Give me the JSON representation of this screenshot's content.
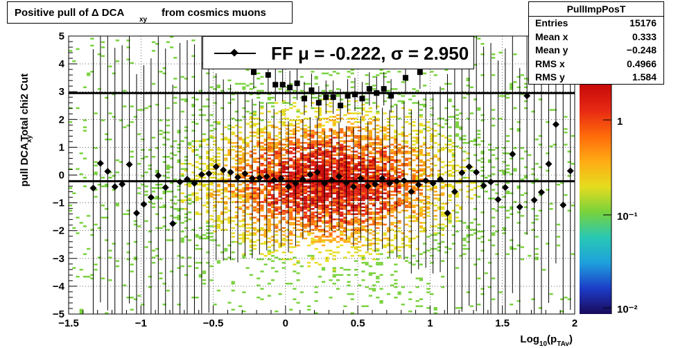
{
  "title": {
    "text1": "Positive pull of Δ DCA",
    "sub": "xy",
    "text2": "from cosmics muons"
  },
  "stats": {
    "name": "PullImpPosT",
    "rows": [
      {
        "label": "Entries",
        "value": "15176"
      },
      {
        "label": "Mean x",
        "value": "0.333"
      },
      {
        "label": "Mean y",
        "value": "−0.248"
      },
      {
        "label": "RMS x",
        "value": "0.4966"
      },
      {
        "label": "RMS y",
        "value": "1.584"
      }
    ]
  },
  "legend": {
    "text": "FF μ = -0.222, σ =   2.950"
  },
  "colors": {
    "marker": "#000000",
    "palette": [
      "#1a0a5a",
      "#1c3cc8",
      "#1ea0dc",
      "#28c8b4",
      "#78d23c",
      "#e6dc1e",
      "#ffaa14",
      "#ff6a0a",
      "#e62814",
      "#c80a0a"
    ]
  },
  "chart_data": {
    "type": "scatter",
    "subtype": "2D histogram with profile markers",
    "xlabel": "Log",
    "xlabel_sub": "10",
    "xlabel_rest": "(p",
    "xlabel_sub2": "TAv",
    "xlabel_end": ")",
    "ylabel_top": "Total chi2 Cut",
    "ylabel": "pull DCA",
    "ylabel_sub": "xy",
    "xlim": [
      -1.5,
      2
    ],
    "ylim": [
      -5,
      5
    ],
    "xticks": [
      "−1.5",
      "−1",
      "−0.5",
      "0",
      "0.5",
      "1",
      "1.5",
      "2"
    ],
    "yticks": [
      "−5",
      "−4",
      "−3",
      "−2",
      "−1",
      "0",
      "1",
      "2",
      "3",
      "4",
      "5"
    ],
    "colorbar_ticks": [
      "1",
      "10⁻¹",
      "10⁻²"
    ],
    "colorbar_scale": "log",
    "grid": true,
    "fit_lines": [
      {
        "name": "mean",
        "y": -0.222
      },
      {
        "name": "upper",
        "y": 2.95
      }
    ],
    "profile_points": [
      {
        "x": -1.33,
        "y": -0.47
      },
      {
        "x": -1.28,
        "y": 0.42
      },
      {
        "x": -1.23,
        "y": 0.13
      },
      {
        "x": -1.18,
        "y": -0.42
      },
      {
        "x": -1.13,
        "y": -0.33
      },
      {
        "x": -1.08,
        "y": 0.38
      },
      {
        "x": -1.03,
        "y": -1.37
      },
      {
        "x": -0.98,
        "y": -1.05
      },
      {
        "x": -0.93,
        "y": -0.8
      },
      {
        "x": -0.88,
        "y": -0.02
      },
      {
        "x": -0.83,
        "y": -0.45
      },
      {
        "x": -0.78,
        "y": -1.75
      },
      {
        "x": -0.73,
        "y": -0.25
      },
      {
        "x": -0.68,
        "y": -0.15
      },
      {
        "x": -0.63,
        "y": -0.3
      },
      {
        "x": -0.58,
        "y": 0.02
      },
      {
        "x": -0.53,
        "y": 0.05
      },
      {
        "x": -0.48,
        "y": 0.3
      },
      {
        "x": -0.43,
        "y": 0.18
      },
      {
        "x": -0.38,
        "y": 0.1
      },
      {
        "x": -0.33,
        "y": -0.08
      },
      {
        "x": -0.28,
        "y": 0.05
      },
      {
        "x": -0.23,
        "y": -0.12
      },
      {
        "x": -0.18,
        "y": -0.1
      },
      {
        "x": -0.13,
        "y": -0.05
      },
      {
        "x": -0.08,
        "y": -0.18
      },
      {
        "x": -0.03,
        "y": -0.12
      },
      {
        "x": 0.02,
        "y": -0.42
      },
      {
        "x": 0.07,
        "y": -0.3
      },
      {
        "x": 0.12,
        "y": -0.15
      },
      {
        "x": 0.17,
        "y": 0.02
      },
      {
        "x": 0.22,
        "y": 0.1
      },
      {
        "x": 0.27,
        "y": -0.3
      },
      {
        "x": 0.32,
        "y": -0.18
      },
      {
        "x": 0.37,
        "y": -0.05
      },
      {
        "x": 0.42,
        "y": -0.28
      },
      {
        "x": 0.47,
        "y": -0.42
      },
      {
        "x": 0.52,
        "y": -0.12
      },
      {
        "x": 0.57,
        "y": -0.4
      },
      {
        "x": 0.62,
        "y": -0.33
      },
      {
        "x": 0.67,
        "y": -0.12
      },
      {
        "x": 0.72,
        "y": -0.3
      },
      {
        "x": 0.77,
        "y": -0.22
      },
      {
        "x": 0.82,
        "y": -0.2
      },
      {
        "x": 0.87,
        "y": -0.6
      },
      {
        "x": 0.92,
        "y": -0.35
      },
      {
        "x": 0.97,
        "y": -0.2
      },
      {
        "x": 1.02,
        "y": -0.3
      },
      {
        "x": 1.07,
        "y": -0.15
      },
      {
        "x": 1.12,
        "y": -1.37
      },
      {
        "x": 1.17,
        "y": -0.6
      },
      {
        "x": 1.22,
        "y": 0.08
      },
      {
        "x": 1.27,
        "y": 0.3
      },
      {
        "x": 1.32,
        "y": 0.1
      },
      {
        "x": 1.37,
        "y": -0.38
      },
      {
        "x": 1.42,
        "y": -0.25
      },
      {
        "x": 1.47,
        "y": -0.88
      },
      {
        "x": 1.52,
        "y": -0.45
      },
      {
        "x": 1.57,
        "y": 0.75
      },
      {
        "x": 1.62,
        "y": -1.15
      },
      {
        "x": 1.67,
        "y": 2.85
      },
      {
        "x": 1.72,
        "y": -0.9
      },
      {
        "x": 1.77,
        "y": -0.62
      },
      {
        "x": 1.82,
        "y": 0.4
      },
      {
        "x": 1.87,
        "y": 1.82
      },
      {
        "x": 1.92,
        "y": -1.08
      },
      {
        "x": 1.97,
        "y": 0.15
      }
    ],
    "upper_points": [
      {
        "x": -0.22,
        "y": 3.7
      },
      {
        "x": -0.12,
        "y": 3.6
      },
      {
        "x": -0.07,
        "y": 3.25
      },
      {
        "x": -0.02,
        "y": 3.25
      },
      {
        "x": 0.03,
        "y": 3.15
      },
      {
        "x": 0.08,
        "y": 3.3
      },
      {
        "x": 0.13,
        "y": 2.75
      },
      {
        "x": 0.18,
        "y": 3.05
      },
      {
        "x": 0.23,
        "y": 2.6
      },
      {
        "x": 0.28,
        "y": 2.8
      },
      {
        "x": 0.33,
        "y": 2.8
      },
      {
        "x": 0.38,
        "y": 2.5
      },
      {
        "x": 0.43,
        "y": 2.85
      },
      {
        "x": 0.48,
        "y": 2.9
      },
      {
        "x": 0.53,
        "y": 2.75
      },
      {
        "x": 0.58,
        "y": 3.1
      },
      {
        "x": 0.63,
        "y": 2.95
      },
      {
        "x": 0.68,
        "y": 3.1
      },
      {
        "x": 0.73,
        "y": 2.85
      },
      {
        "x": 0.83,
        "y": 3.5
      },
      {
        "x": 0.93,
        "y": 3.7
      }
    ]
  }
}
